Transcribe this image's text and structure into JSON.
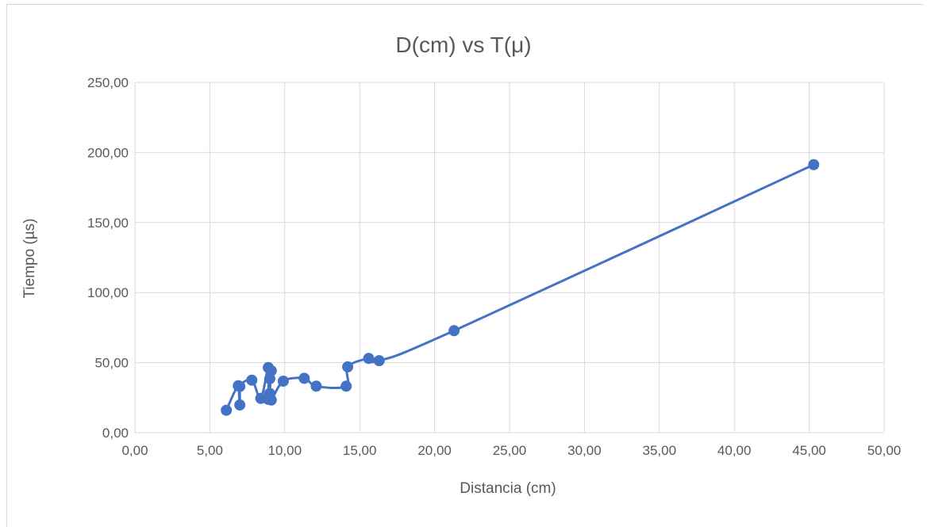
{
  "chart_data": {
    "type": "scatter",
    "title": "D(cm) vs T(μ)",
    "xlabel": "Distancia (cm)",
    "ylabel": "Tiempo (µs)",
    "xlim": [
      0,
      50
    ],
    "ylim": [
      0,
      250
    ],
    "x_ticks": [
      "0,00",
      "5,00",
      "10,00",
      "15,00",
      "20,00",
      "25,00",
      "30,00",
      "35,00",
      "40,00",
      "45,00",
      "50,00"
    ],
    "y_ticks": [
      "0,00",
      "50,00",
      "100,00",
      "150,00",
      "200,00",
      "250,00"
    ],
    "grid": true,
    "smoothed_line": true,
    "series_color": "#4472c4",
    "series": [
      {
        "points": [
          [
            6.1,
            16.0
          ],
          [
            6.9,
            33.5
          ],
          [
            7.0,
            19.8
          ],
          [
            7.0,
            33.0
          ],
          [
            7.8,
            37.5
          ],
          [
            8.4,
            24.5
          ],
          [
            8.9,
            46.5
          ],
          [
            8.9,
            23.8
          ],
          [
            9.0,
            38.5
          ],
          [
            9.1,
            44.2
          ],
          [
            9.0,
            28.0
          ],
          [
            9.1,
            23.3
          ],
          [
            9.9,
            36.8
          ],
          [
            11.3,
            38.8
          ],
          [
            12.1,
            33.2
          ],
          [
            14.1,
            33.2
          ],
          [
            14.2,
            47.0
          ],
          [
            15.6,
            53.0
          ],
          [
            16.3,
            51.4
          ],
          [
            21.3,
            72.8
          ],
          [
            45.3,
            191.3
          ]
        ]
      }
    ]
  }
}
